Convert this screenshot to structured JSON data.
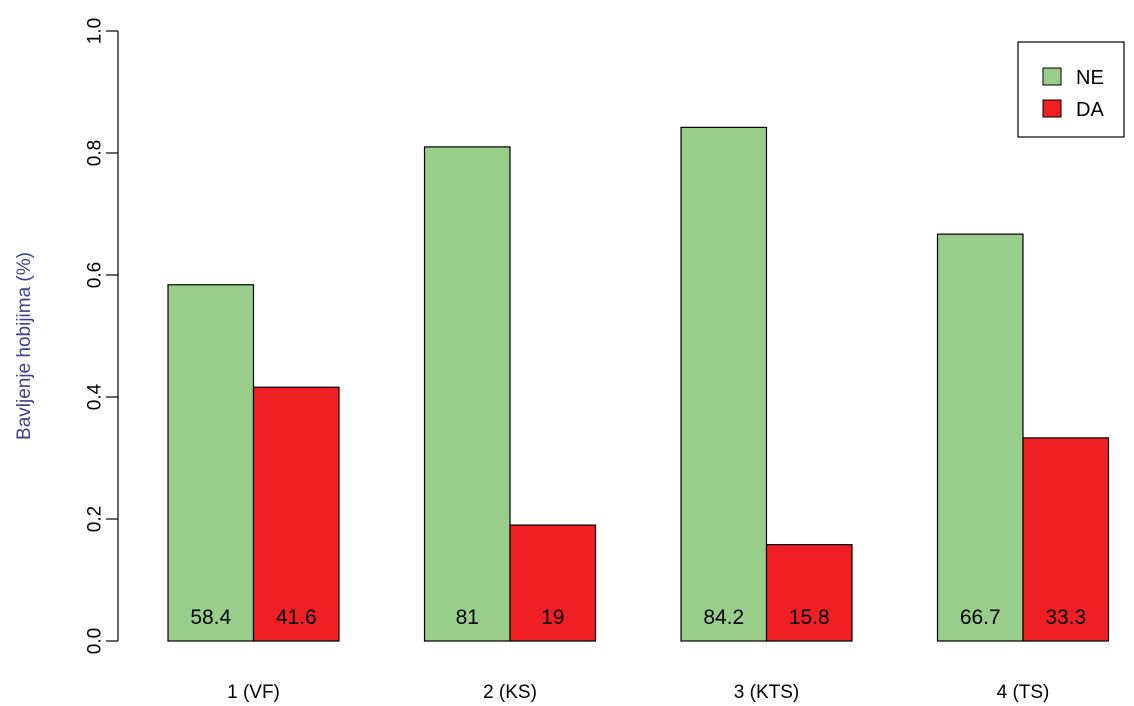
{
  "chart_data": {
    "type": "bar",
    "categories": [
      "1 (VF)",
      "2 (KS)",
      "3 (KTS)",
      "4 (TS)"
    ],
    "series": [
      {
        "name": "NE",
        "values": [
          0.584,
          0.81,
          0.842,
          0.667
        ],
        "labels": [
          "58.4",
          "81",
          "84.2",
          "66.7"
        ],
        "color": "#98CE8A"
      },
      {
        "name": "DA",
        "values": [
          0.416,
          0.19,
          0.158,
          0.333
        ],
        "labels": [
          "41.6",
          "19",
          "15.8",
          "33.3"
        ],
        "color": "#EE2024"
      }
    ],
    "ylabel": "Bavljenje hobijima (%)",
    "ylabel_color": "#3F3F8F",
    "xlabel": "",
    "title": "",
    "ylim": [
      0,
      1
    ],
    "yticks": [
      "0.0",
      "0.2",
      "0.4",
      "0.6",
      "0.8",
      "1.0"
    ],
    "grid": false,
    "legend_position": "top-right"
  }
}
